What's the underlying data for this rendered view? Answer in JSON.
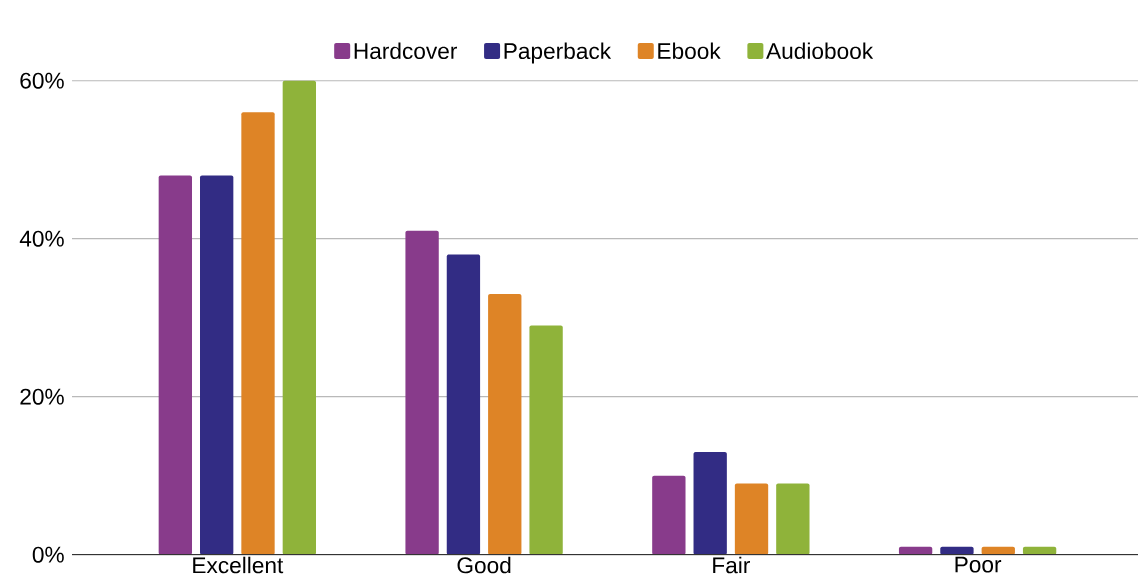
{
  "chart_data": {
    "type": "bar",
    "categories": [
      "Excellent",
      "Good",
      "Fair",
      "Poor"
    ],
    "series": [
      {
        "name": "Hardcover",
        "color": "#883b8b",
        "values": [
          48,
          41,
          10,
          1
        ]
      },
      {
        "name": "Paperback",
        "color": "#322c84",
        "values": [
          48,
          38,
          13,
          1
        ]
      },
      {
        "name": "Ebook",
        "color": "#de8426",
        "values": [
          56,
          33,
          9,
          1
        ]
      },
      {
        "name": "Audiobook",
        "color": "#8fb33a",
        "values": [
          60,
          29,
          9,
          1
        ]
      }
    ],
    "ylim": [
      0,
      60
    ],
    "yticks": [
      {
        "value": 0,
        "label": "0%"
      },
      {
        "value": 20,
        "label": "20%"
      },
      {
        "value": 40,
        "label": "40%"
      },
      {
        "value": 60,
        "label": "60%"
      }
    ],
    "grid": "y",
    "legend": "top"
  }
}
